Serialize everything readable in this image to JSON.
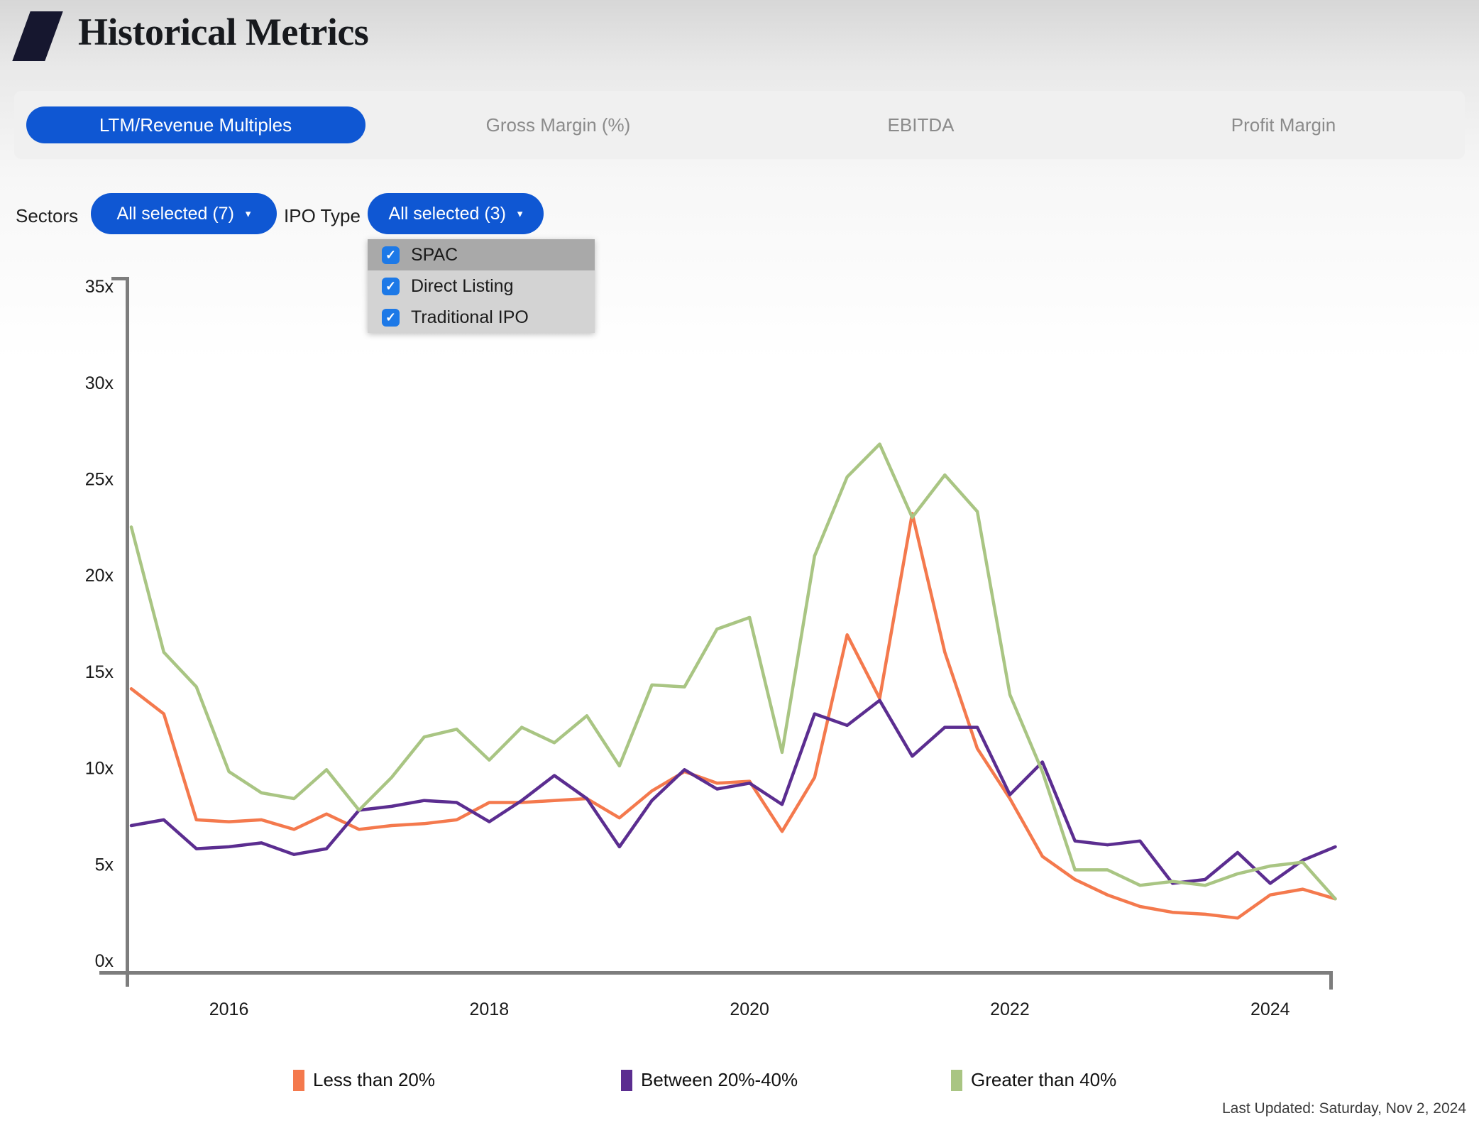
{
  "header": {
    "title": "Historical Metrics"
  },
  "tabs": [
    {
      "label": "LTM/Revenue Multiples",
      "active": true
    },
    {
      "label": "Gross Margin (%)",
      "active": false
    },
    {
      "label": "EBITDA",
      "active": false
    },
    {
      "label": "Profit Margin",
      "active": false
    }
  ],
  "filters": {
    "sectors_label": "Sectors",
    "sectors_value": "All selected (7)",
    "ipo_type_label": "IPO Type",
    "ipo_type_value": "All selected (3)",
    "caret": "▾",
    "menu": {
      "items": [
        {
          "label": "SPAC",
          "checked": true,
          "highlighted": true
        },
        {
          "label": "Direct Listing",
          "checked": true,
          "highlighted": false
        },
        {
          "label": "Traditional IPO",
          "checked": true,
          "highlighted": false
        }
      ],
      "check_glyph": "✓",
      "checkbox_color": "#1d79e7"
    }
  },
  "chart_data": {
    "type": "line",
    "title": "",
    "xlabel": "",
    "ylabel": "",
    "ylim": [
      0,
      35
    ],
    "y_tick_step": 5,
    "y_tick_suffix": "x",
    "grid": false,
    "legend_position": "bottom",
    "x_tick_labels": [
      "2016",
      "2018",
      "2020",
      "2022",
      "2024"
    ],
    "categories": [
      "2015 Q2",
      "2015 Q3",
      "2015 Q4",
      "2016 Q1",
      "2016 Q2",
      "2016 Q3",
      "2016 Q4",
      "2017 Q1",
      "2017 Q2",
      "2017 Q3",
      "2017 Q4",
      "2018 Q1",
      "2018 Q2",
      "2018 Q3",
      "2018 Q4",
      "2019 Q1",
      "2019 Q2",
      "2019 Q3",
      "2019 Q4",
      "2020 Q1",
      "2020 Q2",
      "2020 Q3",
      "2020 Q4",
      "2021 Q1",
      "2021 Q2",
      "2021 Q3",
      "2021 Q4",
      "2022 Q1",
      "2022 Q2",
      "2022 Q3",
      "2022 Q4",
      "2023 Q1",
      "2023 Q2",
      "2023 Q3",
      "2023 Q4",
      "2024 Q1",
      "2024 Q2",
      "2024 Q3"
    ],
    "series": [
      {
        "name": "Less than 20%",
        "color": "#F4794D",
        "values": [
          14.1,
          12.8,
          7.3,
          7.2,
          7.3,
          6.8,
          7.6,
          6.8,
          7.0,
          7.1,
          7.3,
          8.2,
          8.2,
          8.3,
          8.4,
          7.4,
          8.8,
          9.8,
          9.2,
          9.3,
          6.7,
          9.5,
          16.9,
          13.6,
          23.2,
          16.0,
          11.0,
          8.4,
          5.4,
          4.2,
          3.4,
          2.8,
          2.5,
          2.4,
          2.2,
          3.4,
          3.7,
          3.2
        ]
      },
      {
        "name": "Between 20%-40%",
        "color": "#5B2D90",
        "values": [
          7.0,
          7.3,
          5.8,
          5.9,
          6.1,
          5.5,
          5.8,
          7.8,
          8.0,
          8.3,
          8.2,
          7.2,
          8.3,
          9.6,
          8.4,
          5.9,
          8.3,
          9.9,
          8.9,
          9.2,
          8.1,
          12.8,
          12.2,
          13.5,
          10.6,
          12.1,
          12.1,
          8.6,
          10.3,
          6.2,
          6.0,
          6.2,
          4.0,
          4.2,
          5.6,
          4.0,
          5.2,
          5.9
        ]
      },
      {
        "name": "Greater than 40%",
        "color": "#A9C583",
        "values": [
          22.5,
          16.0,
          14.2,
          9.8,
          8.7,
          8.4,
          9.9,
          7.8,
          9.5,
          11.6,
          12.0,
          10.4,
          12.1,
          11.3,
          12.7,
          10.1,
          14.3,
          14.2,
          17.2,
          17.8,
          10.8,
          21.0,
          25.1,
          26.8,
          23.0,
          25.2,
          23.3,
          13.8,
          9.8,
          4.7,
          4.7,
          3.9,
          4.1,
          3.9,
          4.5,
          4.9,
          5.1,
          3.2
        ]
      }
    ]
  },
  "footer": {
    "last_updated": "Last Updated: Saturday, Nov 2, 2024"
  }
}
